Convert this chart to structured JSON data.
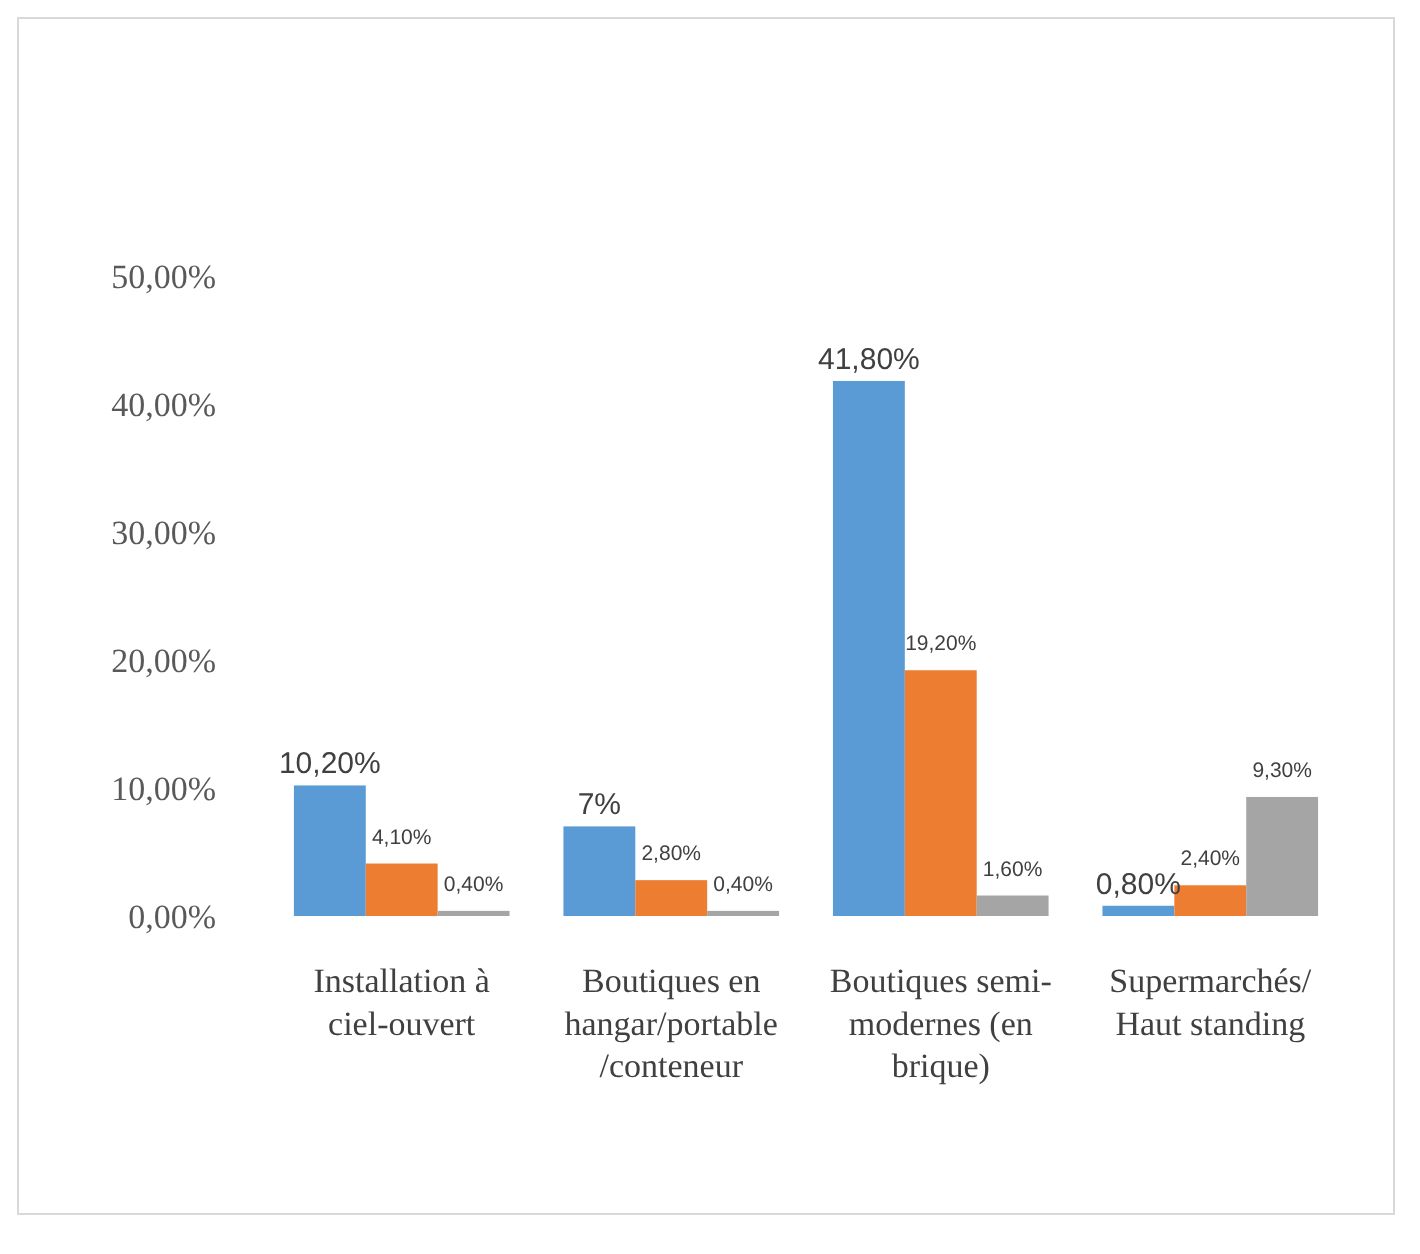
{
  "chart_data": {
    "type": "bar",
    "categories": [
      "Installation à ciel-ouvert",
      "Boutiques en hangar/portable /conteneur",
      "Boutiques semi-modernes (en brique)",
      "Supermarchés/ Haut standing"
    ],
    "series": [
      {
        "color": "#5b9bd5",
        "values": [
          10.2,
          7,
          41.8,
          0.8
        ],
        "value_labels": [
          "10,20%",
          "7%",
          "41,80%",
          "0,80%"
        ]
      },
      {
        "color": "#ed7d31",
        "values": [
          4.1,
          2.8,
          19.2,
          2.4
        ],
        "value_labels": [
          "4,10%",
          "2,80%",
          "19,20%",
          "2,40%"
        ]
      },
      {
        "color": "#a5a5a5",
        "values": [
          0.4,
          0.4,
          1.6,
          9.3
        ],
        "value_labels": [
          "0,40%",
          "0,40%",
          "1,60%",
          "9,30%"
        ]
      }
    ],
    "ylim": [
      0,
      50
    ],
    "yticks": [
      {
        "value": 0,
        "label": "0,00%"
      },
      {
        "value": 10,
        "label": "10,00%"
      },
      {
        "value": 20,
        "label": "20,00%"
      },
      {
        "value": 30,
        "label": "30,00%"
      },
      {
        "value": 40,
        "label": "40,00%"
      },
      {
        "value": 50,
        "label": "50,00%"
      }
    ],
    "grid": false
  }
}
